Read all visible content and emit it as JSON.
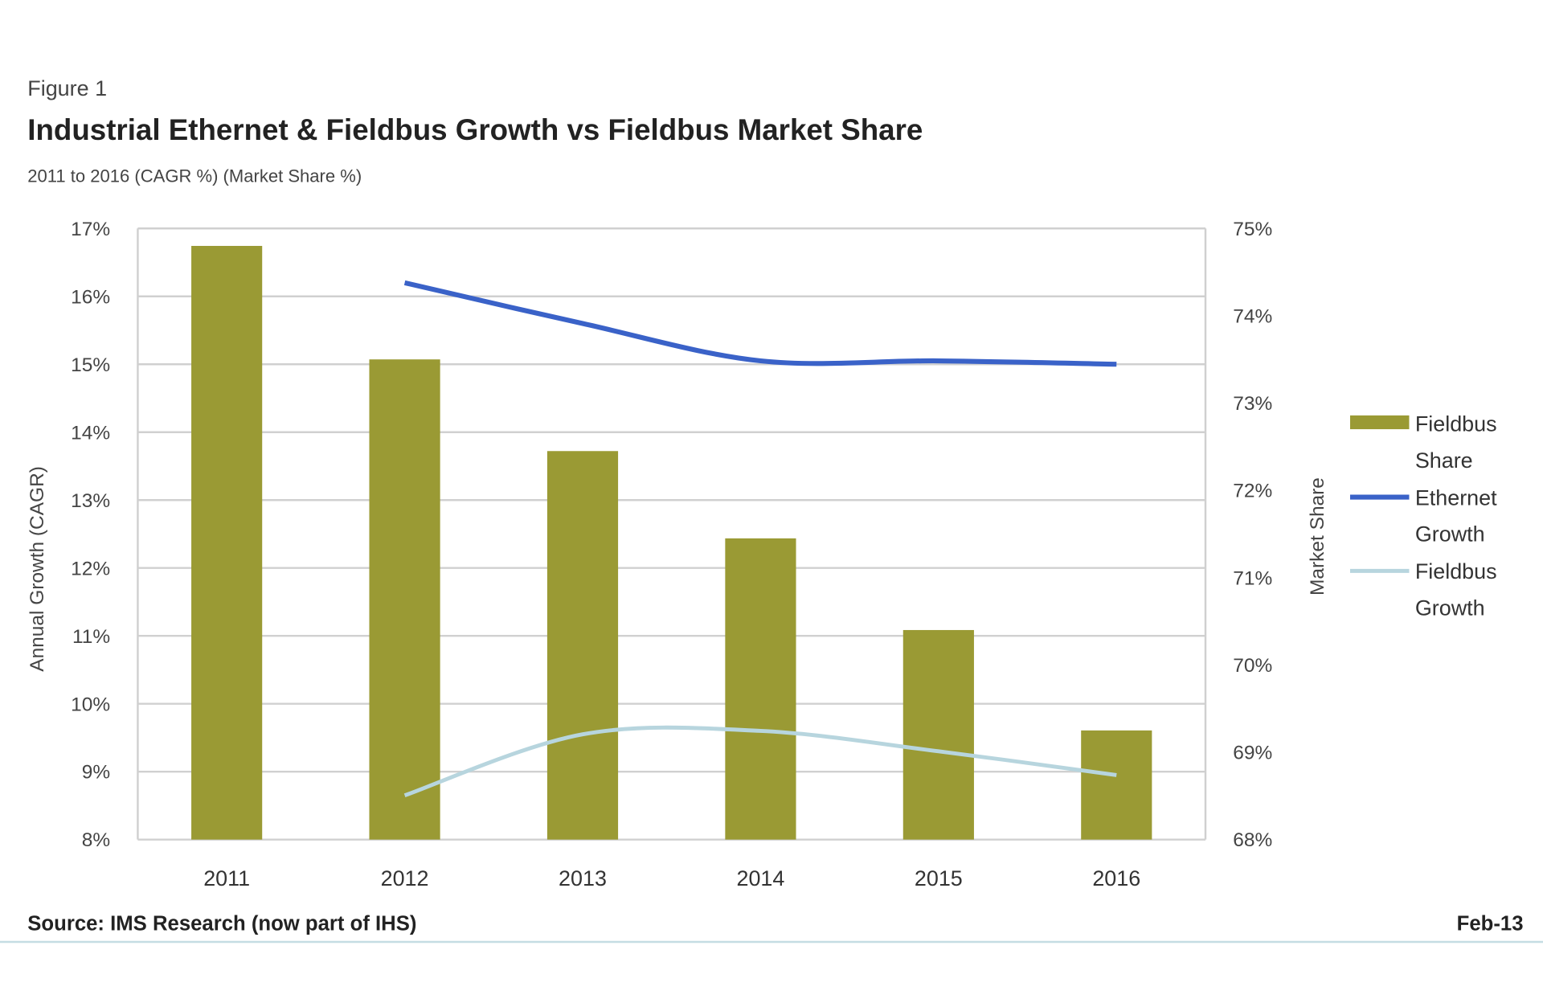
{
  "figure_label": "Figure 1",
  "source": "Source: IMS Research (now part of IHS)",
  "date": "Feb-13",
  "colors": {
    "bar": "#9a9a34",
    "ethernet": "#3a62c8",
    "fieldbus_growth": "#b7d5de",
    "grid": "#d0d0d0"
  },
  "chart_data": {
    "type": "bar+line",
    "title": "Industrial Ethernet & Fieldbus Growth vs Fieldbus Market Share",
    "subtitle": "2011 to 2016 (CAGR %) (Market Share %)",
    "ylabel": "Annual Growth (CAGR)",
    "y2label": "Market Share",
    "ylim": [
      8,
      17
    ],
    "y2lim": [
      68,
      75
    ],
    "yticks": [
      "8%",
      "9%",
      "10%",
      "11%",
      "12%",
      "13%",
      "14%",
      "15%",
      "16%",
      "17%"
    ],
    "y2ticks": [
      "68%",
      "69%",
      "70%",
      "71%",
      "72%",
      "73%",
      "74%",
      "75%"
    ],
    "categories": [
      "2011",
      "2012",
      "2013",
      "2014",
      "2015",
      "2016"
    ],
    "grid": true,
    "legend_position": "right",
    "series": [
      {
        "name": "Fieldbus Share",
        "type": "bar",
        "axis": "right",
        "values": [
          74.8,
          73.5,
          72.45,
          71.45,
          70.4,
          69.25
        ]
      },
      {
        "name": "Ethernet Growth",
        "type": "line",
        "axis": "left",
        "values": [
          null,
          16.2,
          15.6,
          15.05,
          15.05,
          15.0
        ]
      },
      {
        "name": "Fieldbus Growth",
        "type": "line",
        "axis": "left",
        "values": [
          null,
          8.65,
          9.55,
          9.6,
          9.3,
          8.95
        ]
      }
    ],
    "legend": [
      [
        "Fieldbus",
        "Share"
      ],
      [
        "Ethernet",
        "Growth"
      ],
      [
        "Fieldbus",
        "Growth"
      ]
    ]
  }
}
